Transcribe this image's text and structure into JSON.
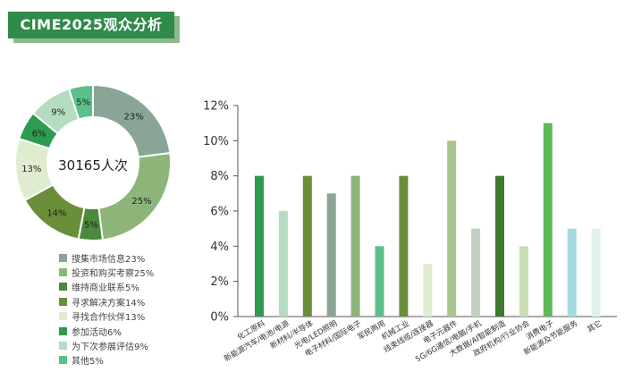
{
  "title": "CIME2025观众分析",
  "donut_center": "30165人次",
  "chart_data": [
    {
      "type": "pie",
      "title": "",
      "center_label": "30165人次",
      "series": [
        {
          "label": "搜集市场信息23%",
          "slice_label": "23%",
          "value": 23,
          "color": "#8aa596"
        },
        {
          "label": "投资和购买考察25%",
          "slice_label": "25%",
          "value": 25,
          "color": "#8db57a"
        },
        {
          "label": "维持商业联系5%",
          "slice_label": "5%",
          "value": 5,
          "color": "#4a8a3c"
        },
        {
          "label": "寻求解决方案14%",
          "slice_label": "14%",
          "value": 14,
          "color": "#6b8e3a"
        },
        {
          "label": "寻找合作伙伴13%",
          "slice_label": "13%",
          "value": 13,
          "color": "#e0ecd0"
        },
        {
          "label": "参加活动6%",
          "slice_label": "6%",
          "value": 6,
          "color": "#2e9b4e"
        },
        {
          "label": "为下次参展评估9%",
          "slice_label": "9%",
          "value": 9,
          "color": "#b5dcc0"
        },
        {
          "label": "其他5%",
          "slice_label": "5%",
          "value": 5,
          "color": "#5cc08a"
        }
      ],
      "legend_position": "bottom"
    },
    {
      "type": "bar",
      "title": "",
      "xlabel": "",
      "ylabel": "",
      "ylim": [
        0,
        12
      ],
      "yticks": [
        "0%",
        "2%",
        "4%",
        "6%",
        "8%",
        "10%",
        "12%"
      ],
      "grid": false,
      "categories": [
        "化工原料",
        "新能源汽车/电池/电源",
        "新材料/半导体",
        "光电/LED照明",
        "电子材料/国际电子",
        "军民两用",
        "机械工业",
        "线束线缆/连接器",
        "电子元器件",
        "5G/6G通信/电脑/手机",
        "大数据/AI智能制造",
        "政府机构/行业协会",
        "消费电子",
        "新能源及节能服务",
        "其它"
      ],
      "values": [
        8,
        6,
        8,
        7,
        8,
        4,
        8,
        3,
        10,
        5,
        8,
        4,
        11,
        5,
        5
      ],
      "colors": [
        "#2e9b4e",
        "#b5dcc0",
        "#6b8e3a",
        "#8aa596",
        "#8db57a",
        "#5cc08a",
        "#6b8e3a",
        "#e0ecd0",
        "#a9c590",
        "#c4cfc4",
        "#3e7a33",
        "#c9dfb2",
        "#5fb85a",
        "#a6d8df",
        "#e0f1ee"
      ]
    }
  ]
}
